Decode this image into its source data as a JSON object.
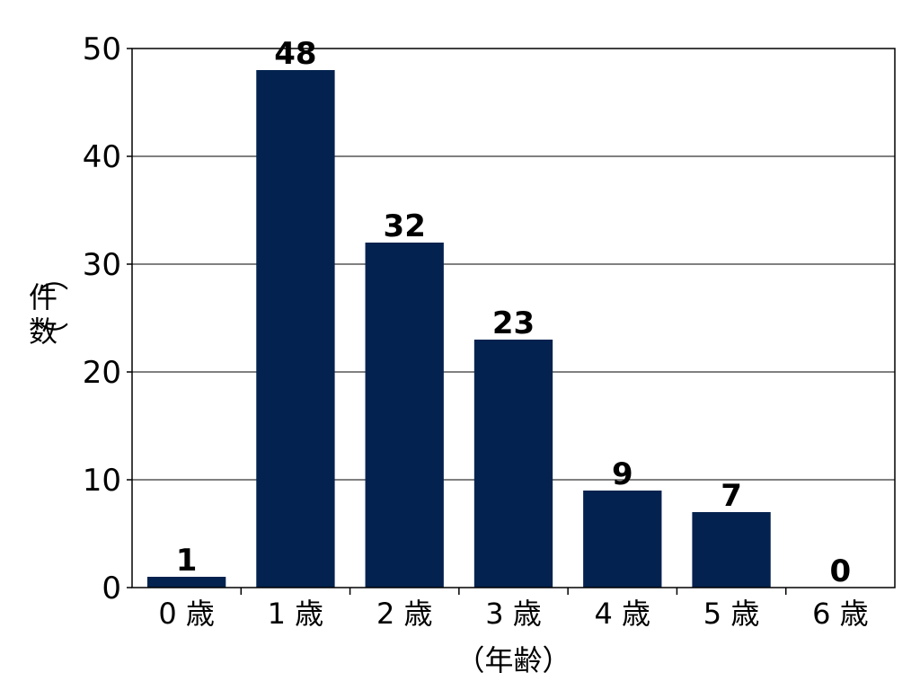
{
  "chart_data": {
    "type": "bar",
    "categories": [
      "0 歳",
      "1 歳",
      "2 歳",
      "3 歳",
      "4 歳",
      "5 歳",
      "6 歳"
    ],
    "values": [
      1,
      48,
      32,
      23,
      9,
      7,
      0
    ],
    "title": "",
    "xlabel": "（年齢）",
    "ylabel_lines": [
      "（",
      "件",
      "数",
      "）"
    ],
    "ylim": [
      0,
      50
    ],
    "yticks": [
      0,
      10,
      20,
      30,
      40,
      50
    ],
    "grid": true,
    "bar_color": "#03224f",
    "data_labels": true
  }
}
